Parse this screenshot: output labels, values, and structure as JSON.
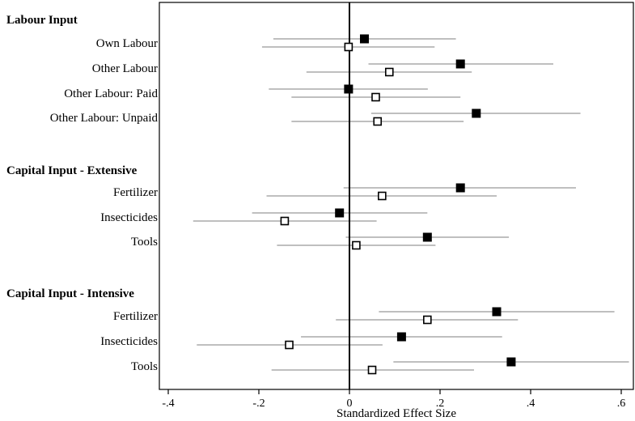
{
  "chart_data": {
    "type": "scatter",
    "subtype": "coefficient-plot",
    "xlabel": "Standardized Effect Size",
    "xlim": [
      -0.42,
      0.63
    ],
    "xticks": [
      -0.4,
      -0.2,
      0,
      0.2,
      0.4,
      0.6
    ],
    "xtick_labels": [
      "-.4",
      "-.2",
      "0",
      ".2",
      ".4",
      ".6"
    ],
    "zero_line": 0,
    "grid": false,
    "series": [
      {
        "marker": "filled-square",
        "color": "#000000"
      },
      {
        "marker": "hollow-square",
        "color": "#000000"
      }
    ],
    "ci_color": "#999999",
    "groups": [
      {
        "title": "Labour Input",
        "rows": [
          {
            "label": "Own Labour",
            "points": [
              {
                "est": 0.033,
                "lo": -0.168,
                "hi": 0.235
              },
              {
                "est": -0.002,
                "lo": -0.193,
                "hi": 0.188
              }
            ]
          },
          {
            "label": "Other Labour",
            "points": [
              {
                "est": 0.245,
                "lo": 0.042,
                "hi": 0.45
              },
              {
                "est": 0.088,
                "lo": -0.095,
                "hi": 0.27
              }
            ]
          },
          {
            "label": "Other Labour: Paid",
            "points": [
              {
                "est": -0.002,
                "lo": -0.178,
                "hi": 0.173
              },
              {
                "est": 0.058,
                "lo": -0.128,
                "hi": 0.245
              }
            ]
          },
          {
            "label": "Other Labour: Unpaid",
            "points": [
              {
                "est": 0.28,
                "lo": 0.048,
                "hi": 0.51
              },
              {
                "est": 0.062,
                "lo": -0.128,
                "hi": 0.252
              }
            ]
          }
        ]
      },
      {
        "title": "Capital Input - Extensive",
        "rows": [
          {
            "label": "Fertilizer",
            "points": [
              {
                "est": 0.245,
                "lo": -0.013,
                "hi": 0.5
              },
              {
                "est": 0.072,
                "lo": -0.183,
                "hi": 0.325
              }
            ]
          },
          {
            "label": "Insecticides",
            "points": [
              {
                "est": -0.022,
                "lo": -0.215,
                "hi": 0.172
              },
              {
                "est": -0.143,
                "lo": -0.345,
                "hi": 0.06
              }
            ]
          },
          {
            "label": "Tools",
            "points": [
              {
                "est": 0.172,
                "lo": -0.008,
                "hi": 0.352
              },
              {
                "est": 0.015,
                "lo": -0.16,
                "hi": 0.19
              }
            ]
          }
        ]
      },
      {
        "title": "Capital Input - Intensive",
        "rows": [
          {
            "label": "Fertilizer",
            "points": [
              {
                "est": 0.325,
                "lo": 0.065,
                "hi": 0.585
              },
              {
                "est": 0.172,
                "lo": -0.03,
                "hi": 0.372
              }
            ]
          },
          {
            "label": "Insecticides",
            "points": [
              {
                "est": 0.115,
                "lo": -0.107,
                "hi": 0.337
              },
              {
                "est": -0.133,
                "lo": -0.337,
                "hi": 0.073
              }
            ]
          },
          {
            "label": "Tools",
            "points": [
              {
                "est": 0.357,
                "lo": 0.097,
                "hi": 0.617
              },
              {
                "est": 0.05,
                "lo": -0.172,
                "hi": 0.275
              }
            ]
          }
        ]
      }
    ]
  }
}
